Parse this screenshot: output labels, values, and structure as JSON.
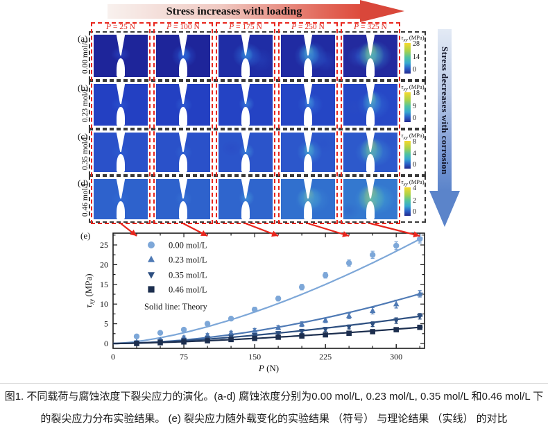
{
  "banner_top": {
    "label": "Stress increases with loading"
  },
  "banner_right": {
    "label": "Stress decreases with corrosion"
  },
  "grid": {
    "column_headers": [
      "P = 25 N",
      "P = 100 N",
      "P = 175 N",
      "P = 250 N",
      "P = 325 N"
    ],
    "colorbar_label": {
      "tau": "τ",
      "sub": "xy",
      "unit": "(MPa)"
    },
    "accent_red": "#e8251c",
    "rows": [
      {
        "panel": "(a)",
        "concentration": "0.00 mol/L",
        "colorbar_ticks": [
          "28",
          "14",
          "0"
        ],
        "cells": [
          {
            "bg": "#1e259a",
            "spots": [
              [
                50,
                46,
                20,
                15,
                "rgba(43,70,195,0.75)"
              ]
            ]
          },
          {
            "bg": "#1e259a",
            "spots": [
              [
                52,
                50,
                26,
                24,
                "rgba(40,85,210,0.8)"
              ],
              [
                52,
                49,
                14,
                16,
                "rgba(55,160,230,0.85)"
              ]
            ]
          },
          {
            "bg": "#1f2da5",
            "spots": [
              [
                53,
                49,
                30,
                26,
                "rgba(45,110,215,0.85)"
              ],
              [
                52,
                47,
                13,
                16,
                "rgba(70,200,210,0.9)"
              ],
              [
                78,
                60,
                26,
                24,
                "rgba(38,70,190,0.5)"
              ]
            ]
          },
          {
            "bg": "#202ba2",
            "spots": [
              [
                55,
                50,
                34,
                30,
                "rgba(48,115,215,0.8)"
              ],
              [
                52,
                47,
                22,
                24,
                "rgba(65,190,215,0.9)"
              ],
              [
                52,
                45,
                11,
                18,
                "rgba(205,220,90,0.95)"
              ],
              [
                82,
                62,
                24,
                22,
                "rgba(40,80,200,0.45)"
              ]
            ]
          },
          {
            "bg": "#232a9e",
            "spots": [
              [
                55,
                50,
                38,
                32,
                "rgba(55,155,220,0.7)"
              ],
              [
                52,
                48,
                26,
                28,
                "rgba(125,210,120,0.85)"
              ],
              [
                51,
                45,
                13,
                24,
                "rgba(245,215,50,0.98)"
              ],
              [
                28,
                52,
                24,
                22,
                "rgba(45,85,205,0.55)"
              ]
            ]
          }
        ]
      },
      {
        "panel": "(b)",
        "concentration": "0.23 mol/L",
        "colorbar_ticks": [
          "18",
          "9",
          "0"
        ],
        "cells": [
          {
            "bg": "#2340c2",
            "spots": [
              [
                50,
                50,
                20,
                16,
                "rgba(45,90,210,0.6)"
              ]
            ]
          },
          {
            "bg": "#2340c2",
            "spots": [
              [
                51,
                50,
                18,
                16,
                "rgba(50,100,215,0.7)"
              ]
            ]
          },
          {
            "bg": "#2443c4",
            "spots": [
              [
                52,
                48,
                16,
                16,
                "rgba(62,135,220,0.75)"
              ]
            ]
          },
          {
            "bg": "#2546c5",
            "spots": [
              [
                54,
                49,
                26,
                24,
                "rgba(50,110,215,0.75)"
              ],
              [
                53,
                45,
                11,
                15,
                "rgba(80,185,220,0.9)"
              ]
            ]
          },
          {
            "bg": "#2648c6",
            "spots": [
              [
                56,
                50,
                34,
                30,
                "rgba(52,120,215,0.65)"
              ],
              [
                53,
                45,
                20,
                26,
                "rgba(80,195,200,0.85)"
              ],
              [
                53,
                40,
                9,
                20,
                "rgba(205,222,85,0.95)"
              ],
              [
                20,
                56,
                22,
                20,
                "rgba(42,75,195,0.5)"
              ]
            ]
          }
        ]
      },
      {
        "panel": "(c)",
        "concentration": "0.35 mol/L",
        "colorbar_ticks": [
          "8",
          "4",
          "0"
        ],
        "cells": [
          {
            "bg": "#2a51c9",
            "spots": [
              [
                50,
                50,
                20,
                16,
                "rgba(48,98,212,0.55)"
              ]
            ]
          },
          {
            "bg": "#2a51c9",
            "spots": [
              [
                51,
                50,
                18,
                16,
                "rgba(52,108,214,0.65)"
              ]
            ]
          },
          {
            "bg": "#2b54ca",
            "spots": [
              [
                52,
                48,
                16,
                16,
                "rgba(66,145,220,0.75)"
              ],
              [
                24,
                40,
                22,
                18,
                "rgba(42,72,196,0.5)"
              ]
            ]
          },
          {
            "bg": "#2c57cb",
            "spots": [
              [
                53,
                49,
                26,
                25,
                "rgba(62,145,215,0.8)"
              ],
              [
                52,
                44,
                12,
                17,
                "rgba(96,202,185,0.9)"
              ],
              [
                80,
                28,
                22,
                20,
                "rgba(42,80,200,0.5)"
              ]
            ]
          },
          {
            "bg": "#2d59cb",
            "spots": [
              [
                56,
                50,
                38,
                30,
                "rgba(62,150,212,0.7)"
              ],
              [
                52,
                46,
                24,
                28,
                "rgba(110,202,140,0.85)"
              ],
              [
                52,
                42,
                13,
                23,
                "rgba(236,202,58,0.95)"
              ],
              [
                86,
                18,
                24,
                20,
                "rgba(42,82,198,0.55)"
              ]
            ]
          }
        ]
      },
      {
        "panel": "(d)",
        "concentration": "0.46 mol/L",
        "colorbar_ticks": [
          "4",
          "2",
          "0"
        ],
        "cells": [
          {
            "bg": "#2e62cc",
            "spots": [
              [
                50,
                50,
                20,
                16,
                "rgba(52,110,214,0.55)"
              ]
            ]
          },
          {
            "bg": "#2e62cc",
            "spots": [
              [
                51,
                49,
                18,
                16,
                "rgba(58,120,216,0.65)"
              ]
            ]
          },
          {
            "bg": "#2f65cd",
            "spots": [
              [
                52,
                47,
                16,
                16,
                "rgba(70,155,220,0.75)"
              ]
            ]
          },
          {
            "bg": "#3170ce",
            "spots": [
              [
                58,
                52,
                36,
                28,
                "rgba(62,140,212,0.7)"
              ],
              [
                53,
                48,
                26,
                24,
                "rgba(85,185,200,0.85)"
              ],
              [
                52,
                45,
                12,
                19,
                "rgba(228,200,74,0.92)"
              ]
            ]
          },
          {
            "bg": "#3478cf",
            "spots": [
              [
                58,
                50,
                42,
                32,
                "rgba(68,170,212,0.75)"
              ],
              [
                52,
                48,
                28,
                30,
                "rgba(145,207,110,0.85)"
              ],
              [
                51,
                46,
                15,
                27,
                "rgba(242,188,56,0.97)"
              ],
              [
                10,
                80,
                22,
                18,
                "rgba(47,98,200,0.5)"
              ]
            ]
          }
        ]
      }
    ]
  },
  "chart_data": {
    "type": "scatter",
    "panel_label": "(e)",
    "x": [
      25,
      50,
      75,
      100,
      125,
      150,
      175,
      200,
      225,
      250,
      275,
      300,
      325
    ],
    "xlabel": "P (N)",
    "ylabel": "τxy (MPa)",
    "xlim": [
      0,
      330
    ],
    "ylim": [
      -1.2,
      28
    ],
    "xticks": [
      0,
      75,
      150,
      225,
      300
    ],
    "yticks": [
      0,
      5,
      10,
      15,
      20,
      25
    ],
    "note": "Solid line: Theory",
    "legend_position": "upper-left",
    "series": [
      {
        "name": "0.00 mol/L",
        "marker": "circle",
        "color": "#7da7d8",
        "values": [
          1.8,
          2.7,
          3.5,
          5.0,
          6.3,
          8.6,
          11.4,
          14.3,
          17.3,
          20.4,
          22.5,
          24.8,
          26.5
        ],
        "yerr": [
          0.4,
          0.4,
          0.4,
          0.5,
          0.5,
          0.6,
          0.6,
          0.7,
          0.7,
          0.8,
          0.9,
          1.0,
          1.0
        ],
        "theory_exponent": 1.55
      },
      {
        "name": "0.23 mol/L",
        "marker": "triangle-up",
        "color": "#4f7ab5",
        "values": [
          0.4,
          0.9,
          1.5,
          2.1,
          2.7,
          3.3,
          4.0,
          4.9,
          5.9,
          7.0,
          8.3,
          10.0,
          12.6
        ],
        "yerr": [
          0.3,
          0.3,
          0.4,
          0.4,
          0.4,
          0.5,
          0.5,
          0.6,
          0.6,
          0.7,
          0.8,
          1.0,
          0.8
        ],
        "theory_exponent": 1.8
      },
      {
        "name": "0.35 mol/L",
        "marker": "triangle-down",
        "color": "#2d4f80",
        "values": [
          0.2,
          0.5,
          0.9,
          1.3,
          1.7,
          2.1,
          2.6,
          3.1,
          3.6,
          4.2,
          4.9,
          5.8,
          6.9
        ],
        "yerr": [
          0.3,
          0.3,
          0.3,
          0.3,
          0.4,
          0.4,
          0.4,
          0.5,
          0.5,
          0.5,
          0.6,
          0.7,
          0.7
        ],
        "theory_exponent": 1.55
      },
      {
        "name": "0.46 mol/L",
        "marker": "square",
        "color": "#1c2e4e",
        "values": [
          0.0,
          0.2,
          0.4,
          0.7,
          1.0,
          1.3,
          1.6,
          1.9,
          2.2,
          2.6,
          3.0,
          3.5,
          4.1
        ],
        "yerr": [
          0.2,
          0.2,
          0.3,
          0.3,
          0.3,
          0.3,
          0.4,
          0.4,
          0.4,
          0.4,
          0.5,
          0.5,
          0.5
        ],
        "theory_exponent": 1.5
      }
    ],
    "connector_x_values": [
      25,
      100,
      175,
      250,
      325
    ]
  },
  "caption": {
    "line1": "图1. 不同载荷与腐蚀浓度下裂尖应力的演化。(a-d) 腐蚀浓度分别为0.00 mol/L, 0.23 mol/L, 0.35 mol/L 和0.46 mol/L 下",
    "line2": "的裂尖应力分布实验结果。 (e) 裂尖应力随外载变化的实验结果 （符号） 与理论结果 （实线） 的对比"
  }
}
